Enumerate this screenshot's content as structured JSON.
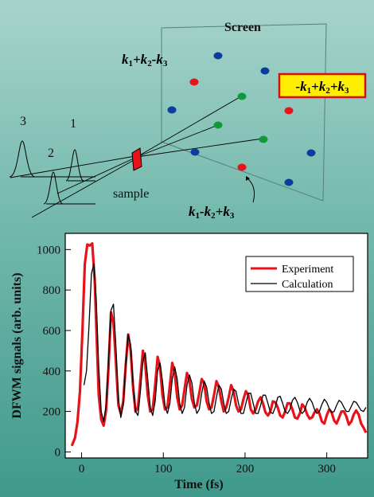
{
  "diagram": {
    "screen_label": "Screen",
    "sample_label": "sample",
    "pulse_labels": [
      "3",
      "2",
      "1"
    ],
    "highlight": {
      "k1": "-k",
      "s1": "1",
      "k2": "+k",
      "s2": "2",
      "k3": "+k",
      "s3": "3"
    },
    "upper_beam": {
      "k1": "k",
      "s1": "1",
      "k2": "+k",
      "s2": "2",
      "k3": "-k",
      "s3": "3"
    },
    "lower_beam": {
      "k1": "k",
      "s1": "1",
      "k2": "-k",
      "s2": "2",
      "k3": "+k",
      "s3": "3"
    },
    "dot_colors": {
      "blue": "#0a3d9c",
      "red": "#e8121b",
      "green": "#0f9a3a"
    },
    "highlight_colors": {
      "fill": "#ffee00",
      "border": "#d0101a"
    }
  },
  "chart_data": {
    "type": "line",
    "xlabel": "Time (fs)",
    "ylabel": "DFWM signals (arb. units)",
    "xlim": [
      -20,
      350
    ],
    "ylim": [
      -30,
      1080
    ],
    "xticks": [
      0,
      100,
      200,
      300
    ],
    "yticks": [
      0,
      200,
      400,
      600,
      800,
      1000
    ],
    "legend_position": "top-right",
    "series": [
      {
        "name": "Experiment",
        "color": "#e8121b",
        "x": [
          -12,
          -8,
          -5,
          -2,
          1,
          4,
          7,
          10,
          13,
          16,
          18,
          21,
          24,
          27,
          30,
          33,
          36,
          39,
          42,
          45,
          48,
          51,
          54,
          57,
          60,
          63,
          66,
          69,
          72,
          75,
          78,
          81,
          84,
          87,
          90,
          93,
          96,
          99,
          102,
          105,
          108,
          111,
          114,
          117,
          120,
          123,
          126,
          129,
          132,
          135,
          138,
          141,
          144,
          147,
          150,
          153,
          156,
          159,
          162,
          165,
          168,
          171,
          174,
          177,
          180,
          183,
          186,
          189,
          192,
          195,
          198,
          201,
          204,
          207,
          210,
          213,
          216,
          219,
          222,
          225,
          228,
          231,
          234,
          237,
          240,
          243,
          246,
          249,
          252,
          255,
          258,
          261,
          264,
          267,
          270,
          273,
          276,
          279,
          282,
          285,
          288,
          291,
          294,
          297,
          300,
          303,
          306,
          309,
          312,
          315,
          318,
          321,
          324,
          327,
          330,
          333,
          336,
          339,
          342,
          345,
          348
        ],
        "y": [
          30,
          70,
          150,
          300,
          600,
          930,
          1025,
          1020,
          1030,
          850,
          620,
          280,
          160,
          130,
          210,
          420,
          690,
          640,
          440,
          230,
          190,
          250,
          430,
          580,
          500,
          320,
          200,
          220,
          360,
          500,
          430,
          280,
          200,
          210,
          330,
          470,
          420,
          280,
          210,
          220,
          330,
          440,
          390,
          270,
          210,
          230,
          310,
          390,
          350,
          260,
          220,
          230,
          290,
          360,
          340,
          250,
          210,
          220,
          280,
          350,
          320,
          250,
          200,
          220,
          270,
          330,
          300,
          230,
          200,
          210,
          260,
          300,
          280,
          210,
          190,
          210,
          250,
          270,
          240,
          195,
          180,
          200,
          250,
          245,
          220,
          180,
          170,
          200,
          240,
          240,
          210,
          170,
          165,
          190,
          235,
          220,
          185,
          165,
          170,
          195,
          210,
          190,
          150,
          140,
          180,
          210,
          195,
          155,
          140,
          170,
          200,
          200,
          175,
          135,
          150,
          185,
          205,
          185,
          140,
          120,
          95
        ]
      },
      {
        "name": "Calculation",
        "color": "#000000",
        "x": [
          3,
          6,
          9,
          12,
          15,
          18,
          21,
          24,
          27,
          30,
          33,
          36,
          39,
          42,
          45,
          48,
          51,
          54,
          57,
          60,
          63,
          66,
          69,
          72,
          75,
          78,
          81,
          84,
          87,
          90,
          93,
          96,
          99,
          102,
          105,
          108,
          111,
          114,
          117,
          120,
          123,
          126,
          129,
          132,
          135,
          138,
          141,
          144,
          147,
          150,
          153,
          156,
          159,
          162,
          165,
          168,
          171,
          174,
          177,
          180,
          183,
          186,
          189,
          192,
          195,
          198,
          201,
          204,
          207,
          210,
          213,
          216,
          219,
          222,
          225,
          228,
          231,
          234,
          237,
          240,
          243,
          246,
          249,
          252,
          255,
          258,
          261,
          264,
          267,
          270,
          273,
          276,
          279,
          282,
          285,
          288,
          291,
          294,
          297,
          300,
          303,
          306,
          309,
          312,
          315,
          318,
          321,
          324,
          327,
          330,
          333,
          336,
          339,
          342,
          345,
          348
        ],
        "y": [
          330,
          400,
          620,
          880,
          930,
          750,
          420,
          200,
          150,
          230,
          460,
          700,
          730,
          520,
          260,
          170,
          230,
          430,
          580,
          530,
          340,
          200,
          180,
          300,
          450,
          490,
          360,
          220,
          180,
          250,
          400,
          440,
          350,
          230,
          190,
          240,
          360,
          420,
          360,
          240,
          190,
          220,
          330,
          380,
          340,
          240,
          190,
          210,
          290,
          350,
          320,
          240,
          190,
          200,
          270,
          330,
          310,
          240,
          190,
          200,
          260,
          310,
          300,
          240,
          190,
          190,
          240,
          290,
          290,
          240,
          190,
          190,
          230,
          280,
          280,
          240,
          195,
          190,
          220,
          270,
          275,
          240,
          200,
          190,
          210,
          255,
          270,
          245,
          205,
          190,
          205,
          245,
          265,
          245,
          210,
          190,
          200,
          235,
          260,
          245,
          215,
          195,
          200,
          230,
          255,
          245,
          220,
          200,
          200,
          225,
          250,
          245,
          225,
          205,
          200,
          220
        ]
      }
    ]
  }
}
